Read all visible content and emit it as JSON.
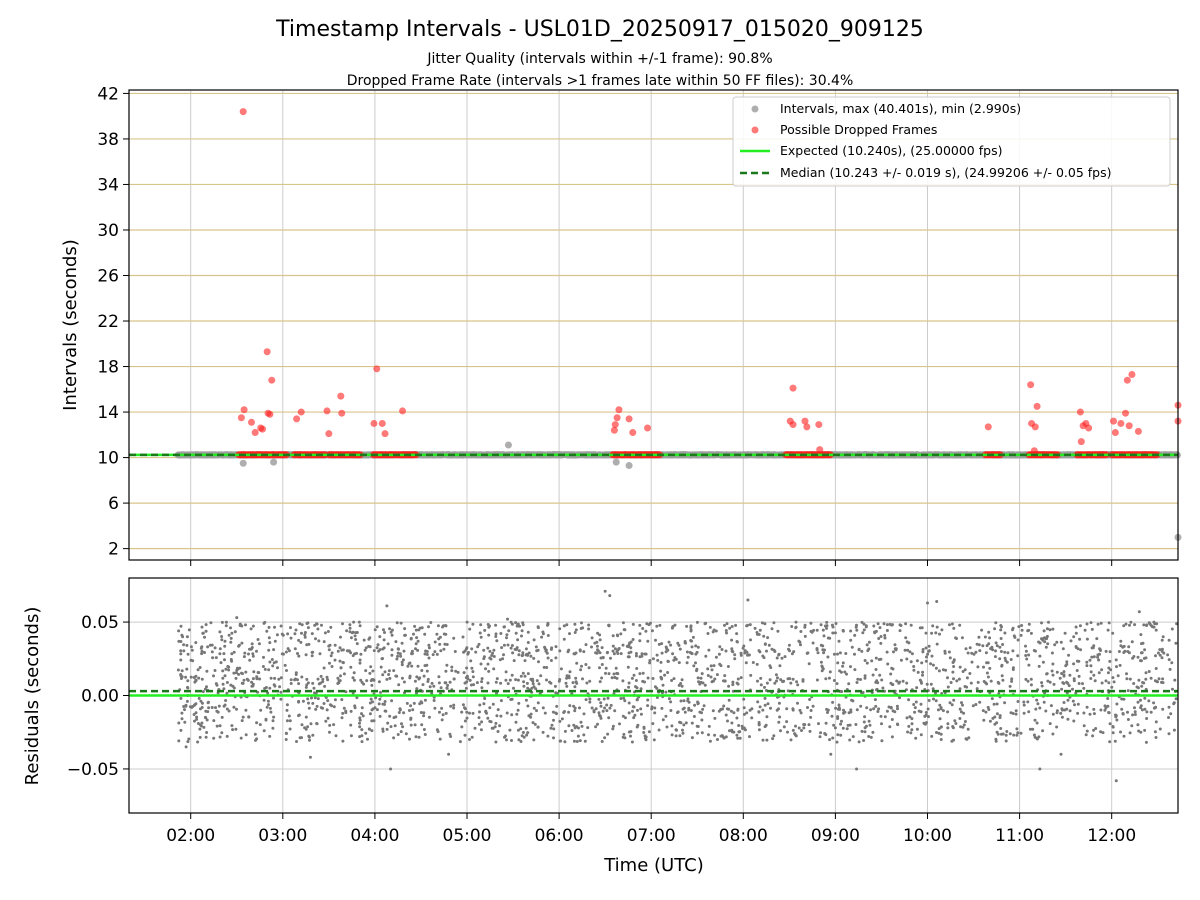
{
  "figure": {
    "title": "Timestamp Intervals - USL01D_20250917_015020_909125",
    "subtitle_1": "Jitter Quality (intervals within +/-1 frame): 90.8%",
    "subtitle_2": "Dropped Frame Rate (intervals >1 frames late within 50 FF files): 30.4%"
  },
  "colors": {
    "intervals": "#a0a0a0",
    "dropped": "#ff2020",
    "expected": "#22ee22",
    "median": "#1a7a1a",
    "grid_top": "#d9c48a",
    "grid": "#cccccc",
    "residuals": "#777777"
  },
  "chart_data": [
    {
      "type": "scatter",
      "panel": "top",
      "title": "",
      "xlabel": "",
      "ylabel": "Intervals (seconds)",
      "x_unit": "hours UTC",
      "xlim": [
        1.33,
        12.72
      ],
      "ylim": [
        1.0,
        42.3
      ],
      "yticks": [
        2,
        6,
        10,
        14,
        18,
        22,
        26,
        30,
        34,
        38,
        42
      ],
      "xticks": [
        2,
        3,
        4,
        5,
        6,
        7,
        8,
        9,
        10,
        11,
        12
      ],
      "xtick_labels": [
        "02:00",
        "03:00",
        "04:00",
        "05:00",
        "06:00",
        "07:00",
        "08:00",
        "09:00",
        "10:00",
        "11:00",
        "12:00"
      ],
      "grid": "on",
      "legend_position": "top-right",
      "legend": [
        "Intervals, max (40.401s), min (2.990s)",
        "Possible Dropped Frames",
        "Expected (10.240s), (25.00000 fps)",
        "Median (10.243 +/- 0.019 s), (24.99206 +/- 0.05 fps)"
      ],
      "expected_value": 10.24,
      "median_value": 10.243,
      "interval_series": {
        "name": "Intervals",
        "baseline": 10.24,
        "x_start": 1.86,
        "x_end": 12.72,
        "outliers": [
          [
            2.57,
            9.5
          ],
          [
            2.9,
            9.6
          ],
          [
            5.45,
            11.1
          ],
          [
            6.62,
            9.6
          ],
          [
            6.76,
            9.3
          ],
          [
            12.72,
            2.99
          ]
        ]
      },
      "dropped_series": {
        "name": "Possible Dropped Frames",
        "baseline_value": 10.24,
        "baseline_segments": [
          [
            2.52,
            3.05
          ],
          [
            3.12,
            3.47
          ],
          [
            3.5,
            3.85
          ],
          [
            3.98,
            4.45
          ],
          [
            6.58,
            7.1
          ],
          [
            8.46,
            8.95
          ],
          [
            10.63,
            10.8
          ],
          [
            11.1,
            11.42
          ],
          [
            11.62,
            11.95
          ],
          [
            12.0,
            12.5
          ]
        ],
        "points": [
          [
            2.57,
            40.4
          ],
          [
            2.55,
            13.5
          ],
          [
            2.58,
            14.2
          ],
          [
            2.66,
            13.1
          ],
          [
            2.7,
            12.2
          ],
          [
            2.76,
            12.6
          ],
          [
            2.78,
            12.5
          ],
          [
            2.83,
            19.3
          ],
          [
            2.84,
            13.9
          ],
          [
            2.86,
            13.8
          ],
          [
            2.88,
            16.8
          ],
          [
            3.15,
            13.4
          ],
          [
            3.2,
            14.0
          ],
          [
            3.48,
            14.1
          ],
          [
            3.5,
            12.1
          ],
          [
            3.63,
            15.4
          ],
          [
            3.64,
            13.9
          ],
          [
            4.02,
            17.8
          ],
          [
            3.99,
            13.0
          ],
          [
            4.08,
            13.0
          ],
          [
            4.11,
            12.1
          ],
          [
            4.3,
            14.1
          ],
          [
            6.6,
            12.4
          ],
          [
            6.61,
            12.9
          ],
          [
            6.63,
            13.5
          ],
          [
            6.65,
            14.2
          ],
          [
            6.76,
            13.4
          ],
          [
            6.8,
            12.2
          ],
          [
            6.96,
            12.6
          ],
          [
            8.54,
            16.1
          ],
          [
            8.51,
            13.2
          ],
          [
            8.54,
            12.9
          ],
          [
            8.67,
            13.2
          ],
          [
            8.69,
            12.7
          ],
          [
            8.82,
            12.9
          ],
          [
            8.83,
            10.7
          ],
          [
            10.66,
            12.7
          ],
          [
            11.12,
            16.4
          ],
          [
            11.13,
            13.0
          ],
          [
            11.17,
            12.7
          ],
          [
            11.19,
            14.5
          ],
          [
            11.16,
            10.6
          ],
          [
            11.66,
            14.0
          ],
          [
            11.67,
            11.4
          ],
          [
            11.69,
            12.8
          ],
          [
            11.72,
            13.0
          ],
          [
            11.75,
            12.6
          ],
          [
            12.02,
            13.2
          ],
          [
            12.04,
            12.2
          ],
          [
            12.1,
            13.0
          ],
          [
            12.15,
            13.9
          ],
          [
            12.17,
            16.8
          ],
          [
            12.19,
            12.8
          ],
          [
            12.22,
            17.3
          ],
          [
            12.29,
            12.3
          ],
          [
            12.72,
            14.6
          ],
          [
            12.72,
            13.2
          ]
        ]
      }
    },
    {
      "type": "scatter",
      "panel": "bottom",
      "title": "",
      "xlabel": "Time (UTC)",
      "ylabel": "Residuals (seconds)",
      "xlim": [
        1.33,
        12.72
      ],
      "ylim": [
        -0.08,
        0.08
      ],
      "yticks": [
        -0.05,
        0.0,
        0.05
      ],
      "ytick_labels": [
        "−0.05",
        "0.00",
        "0.05"
      ],
      "xticks": [
        2,
        3,
        4,
        5,
        6,
        7,
        8,
        9,
        10,
        11,
        12
      ],
      "xtick_labels": [
        "02:00",
        "03:00",
        "04:00",
        "05:00",
        "06:00",
        "07:00",
        "08:00",
        "09:00",
        "10:00",
        "11:00",
        "12:00"
      ],
      "grid": "on",
      "expected_residual": 0.0,
      "median_residual": 0.003,
      "residual_series": {
        "name": "Residuals",
        "x_start": 1.86,
        "x_end": 12.72,
        "count": 2600,
        "levels": [
          -0.02,
          0.0,
          0.02,
          0.04
        ],
        "spread": 0.012,
        "extremes": [
          [
            2.5,
            0.053
          ],
          [
            4.13,
            0.061
          ],
          [
            5.44,
            0.052
          ],
          [
            6.5,
            0.071
          ],
          [
            6.55,
            0.068
          ],
          [
            8.05,
            0.065
          ],
          [
            10.0,
            0.063
          ],
          [
            10.1,
            0.064
          ],
          [
            12.3,
            0.057
          ],
          [
            3.3,
            -0.042
          ],
          [
            4.17,
            -0.05
          ],
          [
            4.8,
            -0.04
          ],
          [
            8.95,
            -0.04
          ],
          [
            9.23,
            -0.05
          ],
          [
            11.22,
            -0.05
          ],
          [
            11.45,
            -0.04
          ],
          [
            12.05,
            -0.058
          ],
          [
            1.95,
            -0.035
          ]
        ]
      }
    }
  ]
}
